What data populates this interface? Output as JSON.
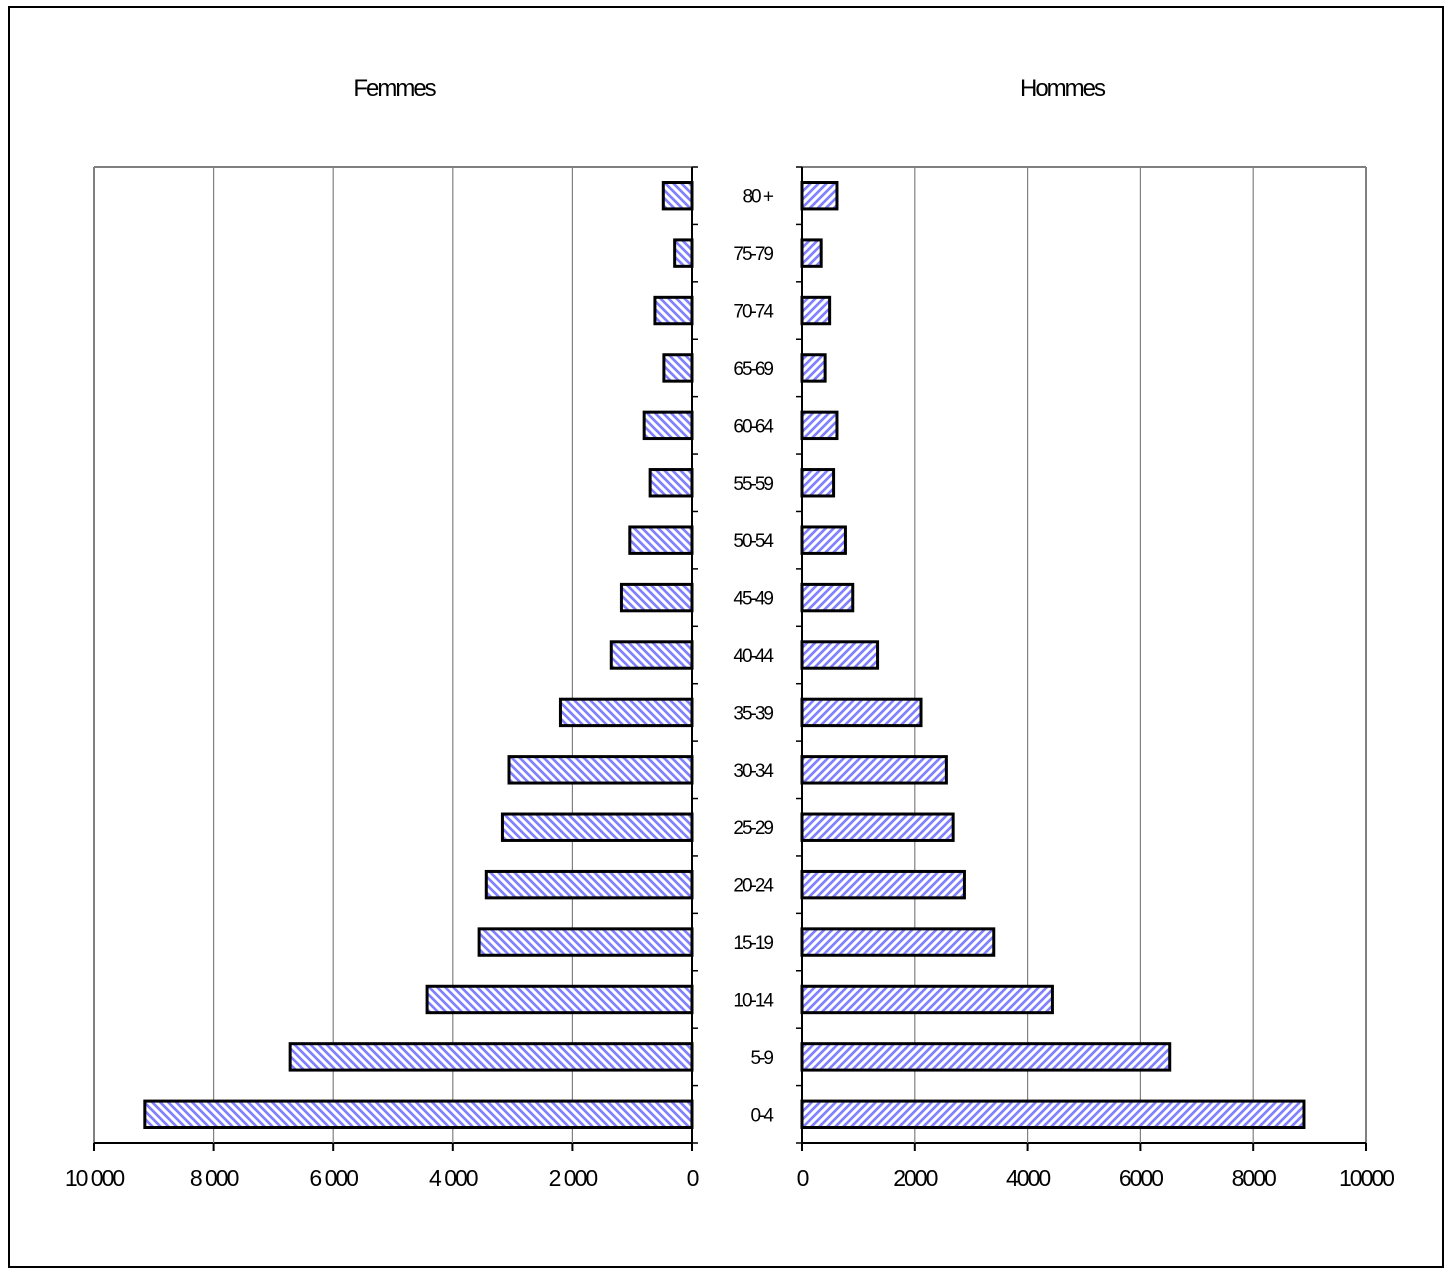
{
  "chart_data": {
    "type": "bar",
    "orientation": "horizontal",
    "subtype": "population-pyramid",
    "categories": [
      "0-4",
      "5-9",
      "10-14",
      "15-19",
      "20-24",
      "25-29",
      "30-34",
      "35-39",
      "40-44",
      "45-49",
      "50-54",
      "55-59",
      "60-64",
      "65-69",
      "70-74",
      "75-79",
      "80+"
    ],
    "category_labels": [
      "0-4",
      "5-9",
      "10-14",
      "15-19",
      "20-24",
      "25-29",
      "30-34",
      "35-39",
      "40-44",
      "45-49",
      "50-54",
      "55-59",
      "60-64",
      "65-69",
      "70-74",
      "75-79",
      "80 +"
    ],
    "series": [
      {
        "name": "Femmes",
        "side": "left",
        "hatch": "backslash",
        "values": [
          9150,
          6720,
          4430,
          3560,
          3440,
          3170,
          3060,
          2200,
          1350,
          1180,
          1040,
          700,
          800,
          470,
          620,
          290,
          480
        ]
      },
      {
        "name": "Hommes",
        "side": "right",
        "hatch": "slash",
        "values": [
          8900,
          6520,
          4440,
          3400,
          2880,
          2680,
          2560,
          2110,
          1340,
          900,
          770,
          560,
          620,
          410,
          490,
          340,
          620
        ]
      }
    ],
    "xlim": [
      0,
      10000
    ],
    "left_axis_reversed": true,
    "left_tick_values": [
      10000,
      8000,
      6000,
      4000,
      2000,
      0
    ],
    "left_tick_labels": [
      "10 000",
      "8 000",
      "6 000",
      "4 000",
      "2 000",
      "0"
    ],
    "right_tick_values": [
      0,
      2000,
      4000,
      6000,
      8000,
      10000
    ],
    "right_tick_labels": [
      "0",
      "2000",
      "4000",
      "6000",
      "8000",
      "10000"
    ],
    "grid": "vertical",
    "legend": "none",
    "colors": {
      "bar_fill": "#ffffff",
      "hatch": "#8080ff",
      "bar_border": "#000000",
      "grid": "#808080",
      "frame": "#808080",
      "axis": "#000000"
    }
  }
}
